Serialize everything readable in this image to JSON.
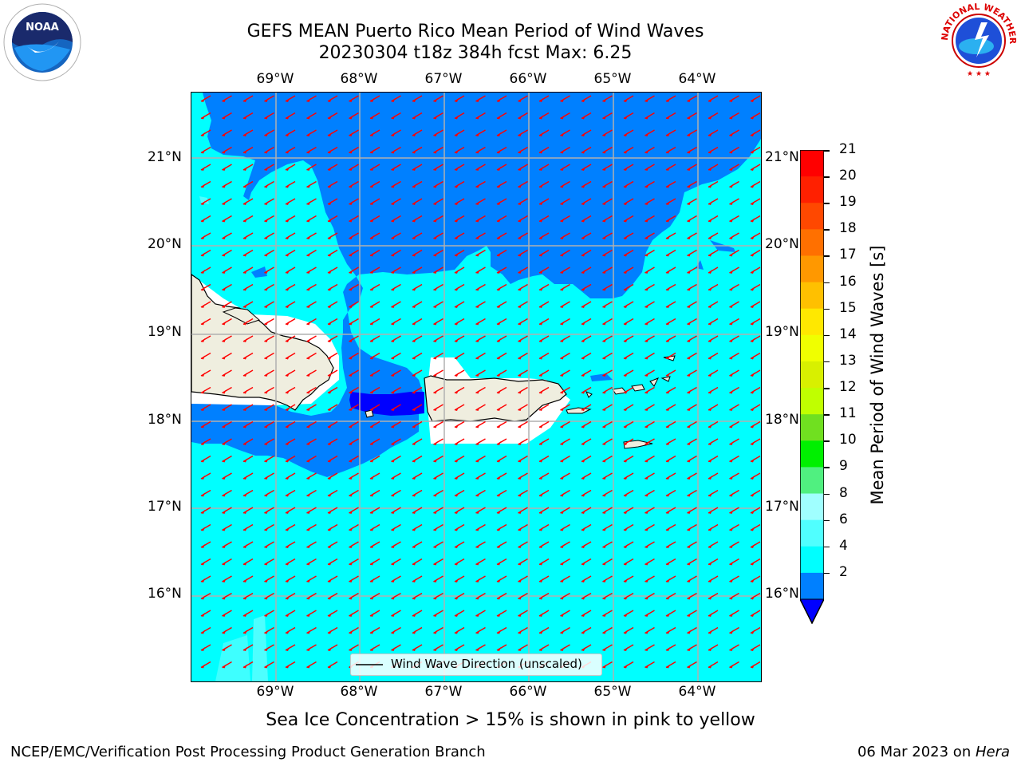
{
  "title": {
    "line1": "GEFS MEAN Puerto Rico Mean Period of Wind Waves",
    "line2": "20230304 t18z 384h fcst   Max: 6.25"
  },
  "logos": {
    "noaa": {
      "text": "NOAA",
      "icon": "noaa-logo-icon"
    },
    "nws": {
      "text": "NATIONAL WEATHER SERVICE",
      "icon": "nws-logo-icon"
    }
  },
  "map": {
    "lon_labels": [
      "69°W",
      "68°W",
      "67°W",
      "66°W",
      "65°W",
      "64°W"
    ],
    "lat_labels": [
      "21°N",
      "20°N",
      "19°N",
      "18°N",
      "17°N",
      "16°N"
    ],
    "legend_label": "Wind Wave Direction (unscaled)",
    "colors": {
      "deep_blue": "#0000ff",
      "blue": "#0080ff",
      "cyan": "#00ffff",
      "light_cyan": "#4dffff",
      "land": "#efeedf",
      "arrow": "#ff0000"
    }
  },
  "colorbar": {
    "label": "Mean Period of Wind Waves [s]",
    "ticks": [
      "21",
      "20",
      "19",
      "18",
      "17",
      "16",
      "15",
      "14",
      "13",
      "12",
      "11",
      "10",
      "9",
      "8",
      "6",
      "4",
      "2"
    ],
    "colors": [
      "#ff0000",
      "#ff2000",
      "#ff4800",
      "#ff7000",
      "#ff9800",
      "#ffc000",
      "#ffe800",
      "#f0ff00",
      "#d8f000",
      "#c0ff00",
      "#70e020",
      "#00f000",
      "#50f080",
      "#a0ffff",
      "#50ffff",
      "#00ffff",
      "#0080ff"
    ],
    "underflow_color": "#0000ff"
  },
  "sea_ice_note": "Sea Ice Concentration > 15% is shown in pink to yellow",
  "footer": {
    "left": "NCEP/EMC/Verification Post Processing Product Generation Branch",
    "right_prefix": "06 Mar 2023 on ",
    "right_host": "Hera"
  }
}
